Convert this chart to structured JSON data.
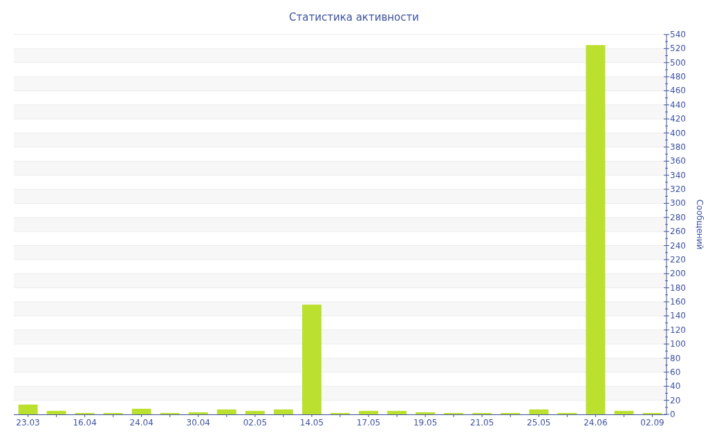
{
  "chart_data": {
    "type": "bar",
    "title": "Статистика активности",
    "y2label": "Сообщений",
    "categories": [
      "23.03",
      null,
      "16.04",
      null,
      "24.04",
      null,
      "30.04",
      null,
      "02.05",
      null,
      "14.05",
      null,
      "17.05",
      null,
      "19.05",
      null,
      "21.05",
      null,
      "25.05",
      null,
      "24.06",
      null,
      "02.09"
    ],
    "series": [
      {
        "color": "#bbe02e",
        "axis": "y2",
        "values": [
          14,
          5,
          2,
          2,
          8,
          2,
          3,
          7,
          5,
          7,
          156,
          2,
          5,
          5,
          3,
          2,
          2,
          2,
          7,
          2,
          525,
          5,
          2
        ]
      }
    ],
    "y2lim": [
      0,
      540
    ],
    "y2ticks": [
      0,
      20,
      40,
      60,
      80,
      100,
      120,
      140,
      160,
      180,
      200,
      220,
      240,
      260,
      280,
      300,
      320,
      340,
      360,
      380,
      400,
      420,
      440,
      460,
      480,
      500,
      520,
      540
    ],
    "grid": "y"
  }
}
